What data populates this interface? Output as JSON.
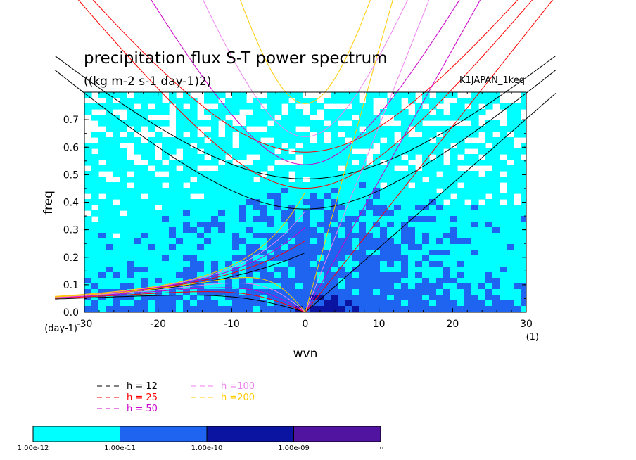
{
  "chart_data": {
    "type": "heatmap",
    "title": "precipitation flux S-T power spectrum",
    "subtitle": "((kg m-2 s-1 day-1)2)",
    "run_label": "K1JAPAN_1keq",
    "xlabel": "wvn",
    "ylabel": "freq",
    "x_unit": "(1)",
    "y_unit": "(day-1)",
    "xlim": [
      -30,
      30
    ],
    "ylim": [
      0,
      0.8
    ],
    "x_ticks": [
      -30,
      -20,
      -10,
      0,
      10,
      20,
      30
    ],
    "x_tick_labels": [
      "-30",
      "-20",
      "-10",
      "0",
      "10",
      "20",
      "30"
    ],
    "y_ticks": [
      0.0,
      0.1,
      0.2,
      0.3,
      0.4,
      0.5,
      0.6,
      0.7
    ],
    "y_tick_labels": [
      "0.0",
      "0.1",
      "0.2",
      "0.3",
      "0.4",
      "0.5",
      "0.6",
      "0.7"
    ],
    "contour_levels": [
      "1.00e-12",
      "1.00e-11",
      "1.00e-10",
      "1.00e-09",
      "∞"
    ],
    "contour_colors": [
      "#00ffff",
      "#1e64f0",
      "#0a14a0",
      "#5014a0"
    ],
    "dispersion_curves": [
      {
        "label": "h = 12",
        "color": "#000000",
        "h": 12
      },
      {
        "label": "h = 25",
        "color": "#ff0000",
        "h": 25
      },
      {
        "label": "h = 50",
        "color": "#cc00cc",
        "h": 50
      },
      {
        "label": "h =100",
        "color": "#ee82ee",
        "h": 100
      },
      {
        "label": "h =200",
        "color": "#ffcc00",
        "h": 200
      }
    ],
    "legend_placement": "bottom-left"
  }
}
